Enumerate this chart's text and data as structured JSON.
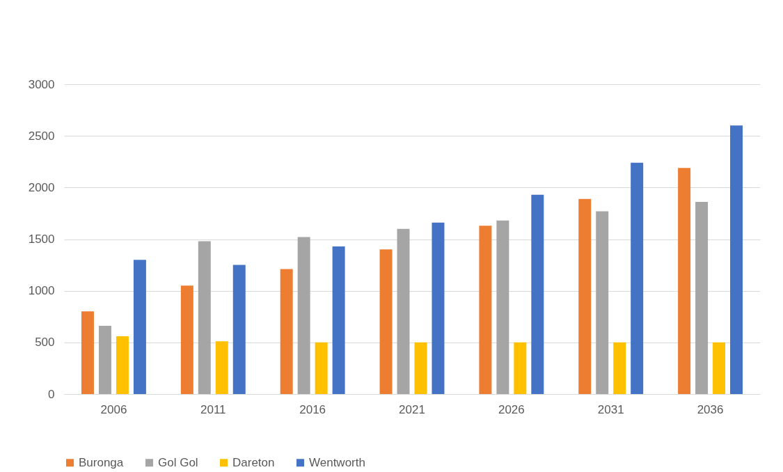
{
  "chart_data": {
    "type": "bar",
    "categories": [
      "2006",
      "2011",
      "2016",
      "2021",
      "2026",
      "2031",
      "2036"
    ],
    "series": [
      {
        "name": "Buronga",
        "color": "#ed7d31",
        "values": [
          800,
          1050,
          1210,
          1400,
          1630,
          1890,
          2190
        ]
      },
      {
        "name": "Gol Gol",
        "color": "#a5a5a5",
        "values": [
          660,
          1480,
          1520,
          1600,
          1680,
          1770,
          1860
        ]
      },
      {
        "name": "Dareton",
        "color": "#ffc000",
        "values": [
          560,
          510,
          500,
          500,
          500,
          500,
          500
        ]
      },
      {
        "name": "Wentworth",
        "color": "#4472c4",
        "values": [
          1300,
          1250,
          1430,
          1660,
          1930,
          2240,
          2600
        ]
      }
    ],
    "ylim": [
      0,
      3000
    ],
    "yticks": [
      0,
      500,
      1000,
      1500,
      2000,
      2500,
      3000
    ],
    "grid": "y",
    "legend": "bottom"
  }
}
